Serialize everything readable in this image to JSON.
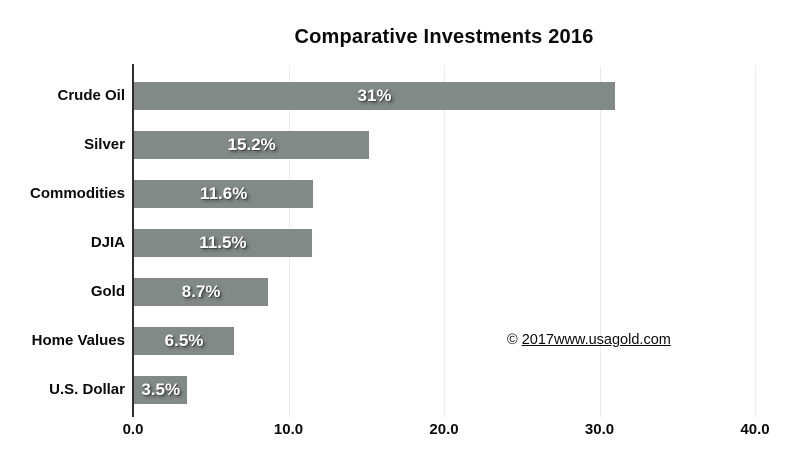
{
  "chart_data": {
    "type": "bar",
    "orientation": "horizontal",
    "title": "Comparative Investments 2016",
    "categories": [
      "Crude Oil",
      "Silver",
      "Commodities",
      "DJIA",
      "Gold",
      "Home Values",
      "U.S. Dollar"
    ],
    "values": [
      31,
      15.2,
      11.6,
      11.5,
      8.7,
      6.5,
      3.5
    ],
    "value_labels": [
      "31%",
      "15.2%",
      "11.6%",
      "11.5%",
      "8.7%",
      "6.5%",
      "3.5%"
    ],
    "xlabel": "",
    "ylabel": "",
    "xlim": [
      0,
      40
    ],
    "x_ticks": [
      0,
      10,
      20,
      30,
      40
    ],
    "x_tick_labels": [
      "0.0",
      "10.0",
      "20.0",
      "30.0",
      "40.0"
    ],
    "grid": "vertical-light",
    "legend": "none",
    "bar_color": "#828a87",
    "value_label_color": "#ffffff",
    "axis_color": "#2e2e2e",
    "gridline_color": "#ececec"
  },
  "annotations": {
    "copyright_prefix": "© ",
    "copyright_link": "2017www.usagold.com"
  }
}
